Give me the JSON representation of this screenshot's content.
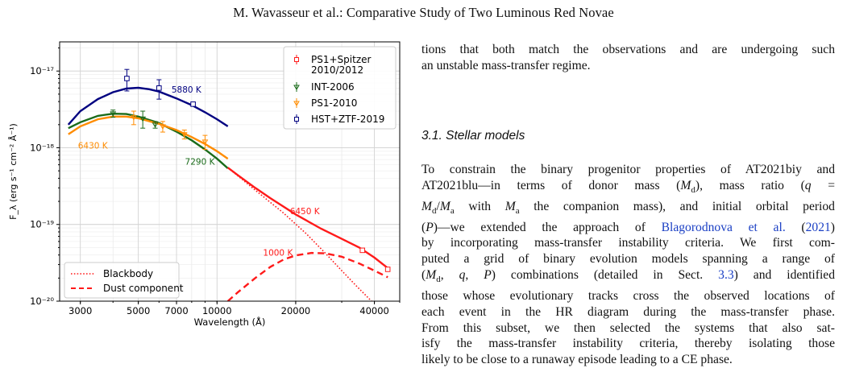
{
  "header": {
    "running_title": "M. Wavasseur et al.: Comparative Study of Two Luminous Red Novae"
  },
  "text": {
    "para1_lines": [
      "tions that both match the observations and are undergoing such",
      "an unstable mass-transfer regime."
    ],
    "section_title": "3.1. Stellar models",
    "body_lines": [
      [
        "To constrain the binary progenitor properties of AT2021biy and"
      ],
      [
        "AT2021blu—in terms of donor mass (",
        {
          "m": "M"
        },
        {
          "sub": "d"
        },
        "), mass ratio (",
        {
          "m": "q"
        },
        " ="
      ],
      [
        {
          "m": "M"
        },
        {
          "sub": "d"
        },
        "/",
        {
          "m": "M"
        },
        {
          "sub": "a"
        },
        " with ",
        {
          "m": "M"
        },
        {
          "sub": "a"
        },
        " the companion mass), and initial orbital period"
      ],
      [
        "(",
        {
          "m": "P"
        },
        ")—we extended the approach of ",
        {
          "cite": "Blagorodnova et al."
        },
        " (",
        {
          "cite": "2021"
        },
        ")"
      ],
      [
        "by incorporating mass-transfer instability criteria. We first com-"
      ],
      [
        "puted a grid of binary evolution models spanning a range of"
      ],
      [
        "(",
        {
          "m": "M"
        },
        {
          "sub": "d"
        },
        ", ",
        {
          "m": "q"
        },
        ", ",
        {
          "m": "P"
        },
        ") combinations (detailed in Sect. ",
        {
          "cite": "3.3"
        },
        ") and identified"
      ],
      [
        "those whose evolutionary tracks cross the observed locations of"
      ],
      [
        "each event in the HR diagram during the mass-transfer phase."
      ],
      [
        "From this subset, we then selected the systems that also sat-"
      ],
      [
        "isfy the mass-transfer instability criteria, thereby isolating those"
      ],
      [
        "likely to be close to a runaway episode leading to a CE phase."
      ]
    ]
  },
  "colors": {
    "hst": "#000080",
    "int": "#1a6b1a",
    "ps1": "#ff8c00",
    "ps1spitzer": "#ff1a1a",
    "link": "#1a3fc4"
  },
  "chart_data": {
    "type": "line",
    "xlabel": "Wavelength (Å)",
    "ylabel": "F_λ (erg s⁻¹ cm⁻² Å⁻¹)",
    "xscale": "log",
    "yscale": "log",
    "xlim": [
      2500,
      50000
    ],
    "ylim": [
      1e-20,
      2.4e-17
    ],
    "xticks": [
      3000,
      5000,
      7000,
      10000,
      20000,
      40000
    ],
    "xtick_labels": [
      "3000",
      "5000",
      "7000",
      "10000",
      "20000",
      "40000"
    ],
    "yticks": [
      1e-20,
      1e-19,
      1e-18,
      1e-17
    ],
    "ytick_labels": [
      "10⁻²⁰",
      "10⁻¹⁹",
      "10⁻¹⁸",
      "10⁻¹⁷"
    ],
    "grid": true,
    "legend_top": {
      "position": "top-right",
      "entries": [
        "PS1+Spitzer\n 2010/2012",
        "INT-2006",
        "PS1-2010",
        "HST+ZTF-2019"
      ]
    },
    "legend_bottom": {
      "position": "bottom-left",
      "entries": [
        "Blackbody",
        "Dust component"
      ]
    },
    "series": [
      {
        "name": "HST+ZTF-2019",
        "color": "#000080",
        "points": [
          [
            4520,
            8e-18,
            2.5e-18
          ],
          [
            6000,
            6e-18,
            1.7e-18
          ],
          [
            8100,
            3.7e-18,
            2e-19
          ]
        ],
        "fit_label": "5880 K",
        "curve": [
          [
            2700,
            2e-18
          ],
          [
            3000,
            3e-18
          ],
          [
            3500,
            4.3e-18
          ],
          [
            4000,
            5.3e-18
          ],
          [
            4500,
            5.9e-18
          ],
          [
            5000,
            6.05e-18
          ],
          [
            5500,
            5.8e-18
          ],
          [
            6000,
            5.4e-18
          ],
          [
            7000,
            4.4e-18
          ],
          [
            8000,
            3.6e-18
          ],
          [
            9000,
            2.9e-18
          ],
          [
            10000,
            2.35e-18
          ],
          [
            11000,
            1.9e-18
          ]
        ]
      },
      {
        "name": "INT-2006",
        "color": "#1a6b1a",
        "points": [
          [
            4000,
            2.8e-18,
            3e-19
          ],
          [
            5200,
            2.4e-18,
            6e-19
          ],
          [
            5800,
            2e-18,
            2e-19
          ]
        ],
        "fit_label": "7290 K",
        "curve": [
          [
            2700,
            1.8e-18
          ],
          [
            3000,
            2.15e-18
          ],
          [
            3500,
            2.6e-18
          ],
          [
            4000,
            2.78e-18
          ],
          [
            4500,
            2.75e-18
          ],
          [
            5000,
            2.55e-18
          ],
          [
            6000,
            2.1e-18
          ],
          [
            7000,
            1.62e-18
          ],
          [
            8000,
            1.25e-18
          ],
          [
            9000,
            9.5e-19
          ],
          [
            10000,
            7.2e-19
          ],
          [
            11000,
            5.4e-19
          ]
        ]
      },
      {
        "name": "PS1-2010",
        "color": "#ff8c00",
        "points": [
          [
            4800,
            2.5e-18,
            5e-19
          ],
          [
            6200,
            1.9e-18,
            3e-19
          ],
          [
            7500,
            1.5e-18,
            2e-19
          ],
          [
            9000,
            1.2e-18,
            2.5e-19
          ]
        ],
        "fit_label": "6430 K",
        "curve": [
          [
            2700,
            1.5e-18
          ],
          [
            3000,
            1.9e-18
          ],
          [
            3500,
            2.35e-18
          ],
          [
            4000,
            2.55e-18
          ],
          [
            4500,
            2.55e-18
          ],
          [
            5000,
            2.42e-18
          ],
          [
            6000,
            2.05e-18
          ],
          [
            7000,
            1.7e-18
          ],
          [
            8000,
            1.38e-18
          ],
          [
            9000,
            1.12e-18
          ],
          [
            10000,
            9e-19
          ],
          [
            11000,
            7.2e-19
          ]
        ]
      },
      {
        "name": "PS1+Spitzer 2010/2012",
        "color": "#ff1a1a",
        "points": [
          [
            36000,
            4.6e-20
          ],
          [
            45000,
            2.6e-20
          ]
        ],
        "fit_label": "6450 K",
        "curve": [
          [
            11000,
            5.5e-19
          ],
          [
            12000,
            4.4e-19
          ],
          [
            14000,
            3e-19
          ],
          [
            16000,
            2.2e-19
          ],
          [
            20000,
            1.35e-19
          ],
          [
            25000,
            8.8e-20
          ],
          [
            30000,
            6.5e-20
          ],
          [
            35000,
            5e-20
          ],
          [
            40000,
            3.7e-20
          ],
          [
            45000,
            2.7e-20
          ]
        ]
      },
      {
        "name": "Blackbody",
        "color": "#ff1a1a",
        "style": "dotted",
        "curve": [
          [
            11000,
            5.5e-19
          ],
          [
            14000,
            2.8e-19
          ],
          [
            18000,
            1.4e-19
          ],
          [
            22000,
            7.5e-20
          ],
          [
            26000,
            4.2e-20
          ],
          [
            30000,
            2.5e-20
          ],
          [
            34000,
            1.6e-20
          ],
          [
            37000,
            1.2e-20
          ],
          [
            39000,
            1e-20
          ]
        ]
      },
      {
        "name": "Dust component",
        "color": "#ff1a1a",
        "style": "dashed",
        "fit_label": "1000 K",
        "curve": [
          [
            11000,
            1e-20
          ],
          [
            12000,
            1.3e-20
          ],
          [
            14000,
            2e-20
          ],
          [
            16000,
            2.8e-20
          ],
          [
            18000,
            3.5e-20
          ],
          [
            20000,
            3.95e-20
          ],
          [
            23000,
            4.25e-20
          ],
          [
            26000,
            4.2e-20
          ],
          [
            30000,
            3.8e-20
          ],
          [
            35000,
            3.1e-20
          ],
          [
            40000,
            2.5e-20
          ],
          [
            45000,
            2.05e-20
          ]
        ]
      }
    ]
  }
}
